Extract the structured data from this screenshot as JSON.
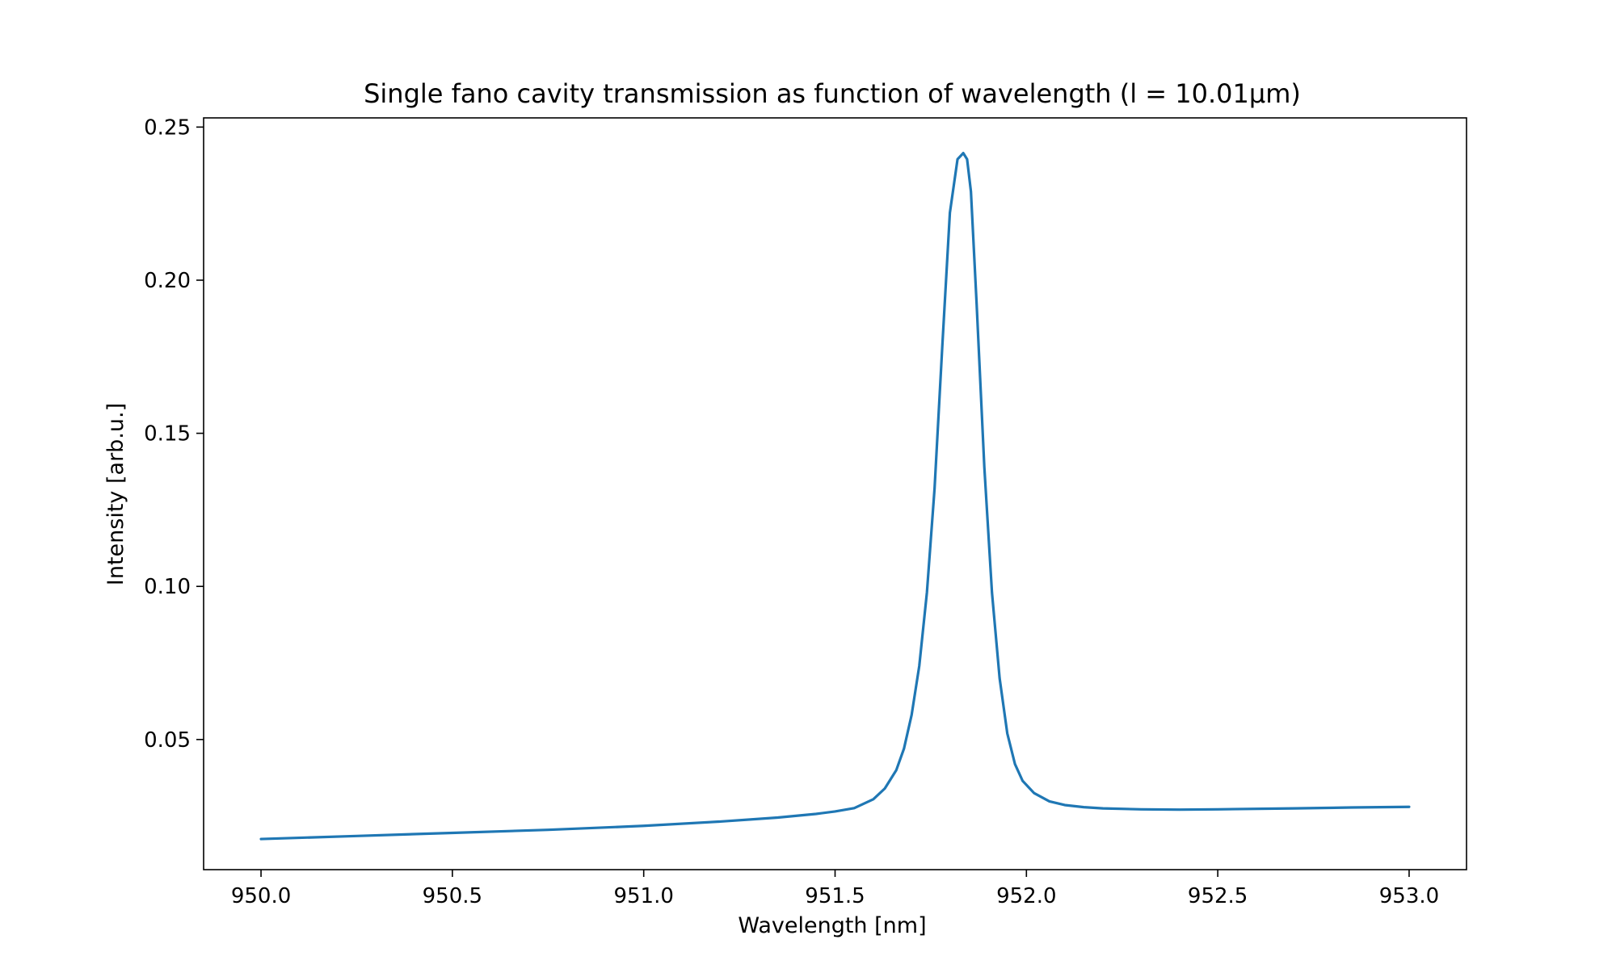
{
  "chart_data": {
    "type": "line",
    "title": "Single fano cavity transmission as function of wavelength (l = 10.01μm)",
    "xlabel": "Wavelength [nm]",
    "ylabel": "Intensity [arb.u.]",
    "xlim": [
      949.85,
      953.15
    ],
    "ylim": [
      0.0075,
      0.253
    ],
    "xticks": [
      950.0,
      950.5,
      951.0,
      951.5,
      952.0,
      952.5,
      953.0
    ],
    "xtick_labels": [
      "950.0",
      "950.5",
      "951.0",
      "951.5",
      "952.0",
      "952.5",
      "953.0"
    ],
    "yticks": [
      0.05,
      0.1,
      0.15,
      0.2,
      0.25
    ],
    "ytick_labels": [
      "0.05",
      "0.10",
      "0.15",
      "0.20",
      "0.25"
    ],
    "grid": false,
    "series": [
      {
        "color": "#1f77b4",
        "x": [
          950.0,
          950.25,
          950.5,
          950.75,
          951.0,
          951.2,
          951.35,
          951.45,
          951.5,
          951.55,
          951.6,
          951.63,
          951.66,
          951.68,
          951.7,
          951.72,
          951.74,
          951.76,
          951.78,
          951.8,
          951.82,
          951.835,
          951.845,
          951.855,
          951.87,
          951.89,
          951.91,
          951.93,
          951.95,
          951.97,
          951.99,
          952.02,
          952.06,
          952.1,
          952.15,
          952.2,
          952.3,
          952.4,
          952.5,
          952.7,
          952.85,
          953.0
        ],
        "y": [
          0.0175,
          0.0185,
          0.0195,
          0.0205,
          0.0218,
          0.0232,
          0.0245,
          0.0257,
          0.0265,
          0.0276,
          0.0305,
          0.034,
          0.04,
          0.047,
          0.058,
          0.074,
          0.098,
          0.132,
          0.178,
          0.222,
          0.2395,
          0.2415,
          0.2395,
          0.229,
          0.192,
          0.139,
          0.098,
          0.07,
          0.052,
          0.042,
          0.0365,
          0.0325,
          0.0298,
          0.0286,
          0.0279,
          0.0275,
          0.0272,
          0.0271,
          0.0272,
          0.0275,
          0.0278,
          0.028
        ]
      }
    ]
  }
}
